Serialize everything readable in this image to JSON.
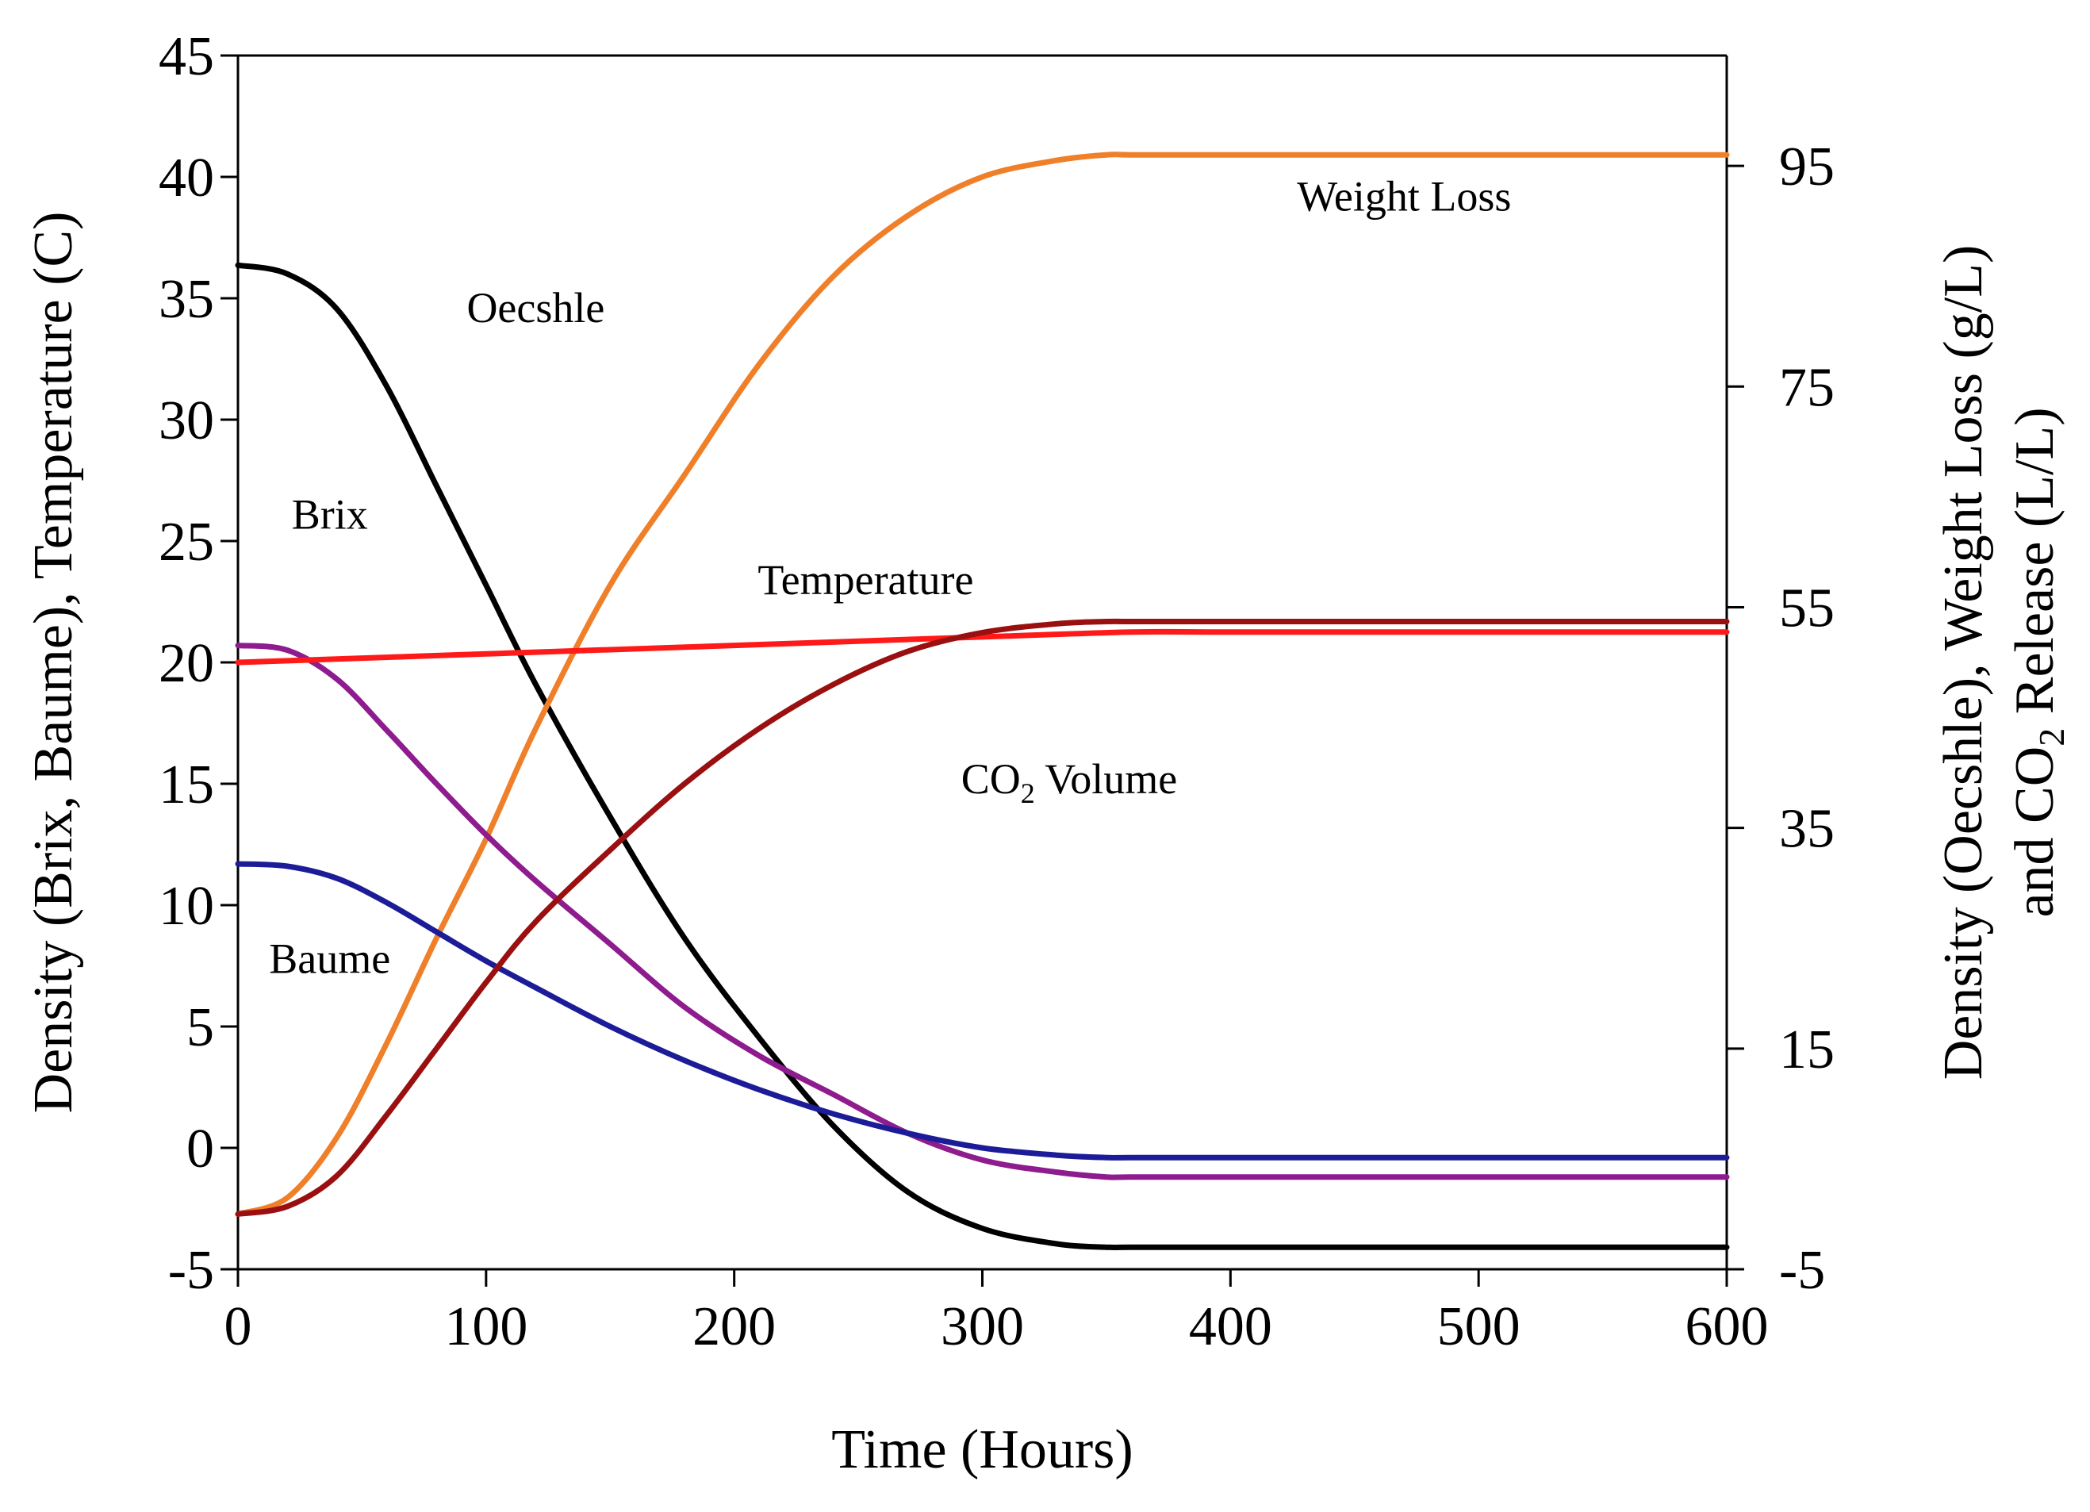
{
  "chart_data": {
    "type": "line",
    "title": "",
    "xlabel": "Time (Hours)",
    "ylabel": "Density (Brix, Baume), Temperature (C)",
    "y2label_line1": "Density (Oecshle), Weight Loss (g/L)",
    "y2label_line2_pre": "and CO",
    "y2label_line2_sub": "2",
    "y2label_line2_post": " Release (L/L)",
    "xlim": [
      0,
      600
    ],
    "ylim": [
      -5,
      45
    ],
    "y2lim": [
      -5,
      105
    ],
    "xticks": [
      0,
      100,
      200,
      300,
      400,
      500,
      600
    ],
    "yticks": [
      -5,
      0,
      5,
      10,
      15,
      20,
      25,
      30,
      35,
      40,
      45
    ],
    "y2ticks": [
      -5,
      15,
      35,
      55,
      75,
      95
    ],
    "grid": false,
    "legend": "none (inline labels)",
    "series": [
      {
        "name": "Oecshle",
        "axis": "right",
        "color": "#000000",
        "x": [
          0,
          20,
          40,
          60,
          80,
          100,
          120,
          150,
          180,
          210,
          240,
          270,
          300,
          330,
          350,
          360,
          400,
          500,
          600
        ],
        "y": [
          86,
          85.2,
          82,
          75,
          66,
          57,
          48,
          36,
          25,
          16,
          8,
          2,
          -1.3,
          -2.7,
          -3,
          -3,
          -3,
          -3,
          -3
        ]
      },
      {
        "name": "Weight Loss",
        "axis": "right",
        "color": "#f07f2a",
        "x": [
          0,
          20,
          40,
          60,
          80,
          100,
          120,
          150,
          180,
          210,
          240,
          270,
          300,
          330,
          350,
          360,
          400,
          500,
          600
        ],
        "y": [
          0,
          1.5,
          7,
          15.5,
          25,
          34,
          44,
          57,
          67,
          77,
          85,
          90.5,
          94,
          95.5,
          96,
          96,
          96,
          96,
          96
        ]
      },
      {
        "name": "Brix",
        "axis": "left",
        "color": "#8e1c8e",
        "x": [
          0,
          20,
          40,
          60,
          80,
          100,
          120,
          150,
          180,
          210,
          240,
          270,
          300,
          330,
          350,
          360,
          400,
          500,
          600
        ],
        "y": [
          20.7,
          20.5,
          19.3,
          17.2,
          15,
          12.9,
          11,
          8.4,
          5.8,
          3.8,
          2.2,
          0.6,
          -0.5,
          -1.0,
          -1.2,
          -1.2,
          -1.2,
          -1.2,
          -1.2
        ]
      },
      {
        "name": "Baume",
        "axis": "left",
        "color": "#1c1c98",
        "x": [
          0,
          20,
          40,
          60,
          80,
          100,
          120,
          150,
          180,
          210,
          240,
          270,
          300,
          330,
          350,
          360,
          400,
          500,
          600
        ],
        "y": [
          11.7,
          11.6,
          11.1,
          10.1,
          8.9,
          7.7,
          6.6,
          5,
          3.6,
          2.4,
          1.4,
          0.6,
          0,
          -0.3,
          -0.4,
          -0.4,
          -0.4,
          -0.4,
          -0.4
        ]
      },
      {
        "name": "Temperature",
        "axis": "left",
        "color": "#ff1a1a",
        "x": [
          0,
          100,
          200,
          300,
          360,
          400,
          500,
          600
        ],
        "y": [
          20,
          20.35,
          20.7,
          21.05,
          21.25,
          21.25,
          21.25,
          21.25
        ]
      },
      {
        "name": "CO2 Volume",
        "axis": "right",
        "color": "#9a1010",
        "x": [
          0,
          20,
          40,
          60,
          80,
          100,
          120,
          150,
          180,
          210,
          240,
          270,
          300,
          330,
          350,
          360,
          400,
          500,
          600
        ],
        "y": [
          0,
          0.7,
          3.5,
          9,
          15,
          21,
          26.5,
          33,
          39,
          44,
          48,
          51,
          52.7,
          53.5,
          53.7,
          53.7,
          53.7,
          53.7,
          53.7
        ]
      }
    ],
    "annotations": [
      {
        "text": "Weight Loss",
        "x": 470,
        "y": 39.2,
        "axis": "left"
      },
      {
        "text": "Oecshle",
        "x": 120,
        "y": 34.6,
        "axis": "left"
      },
      {
        "text": "Brix",
        "x": 37,
        "y": 26.1,
        "axis": "left"
      },
      {
        "text": "Temperature",
        "x": 253,
        "y": 23.4,
        "axis": "left"
      },
      {
        "text": "Baume",
        "x": 37,
        "y": 7.8,
        "axis": "left"
      }
    ],
    "co2_annotation": {
      "pre": "CO",
      "sub": "2",
      "post": " Volume",
      "x": 335,
      "y": 15.2,
      "axis": "left"
    }
  }
}
